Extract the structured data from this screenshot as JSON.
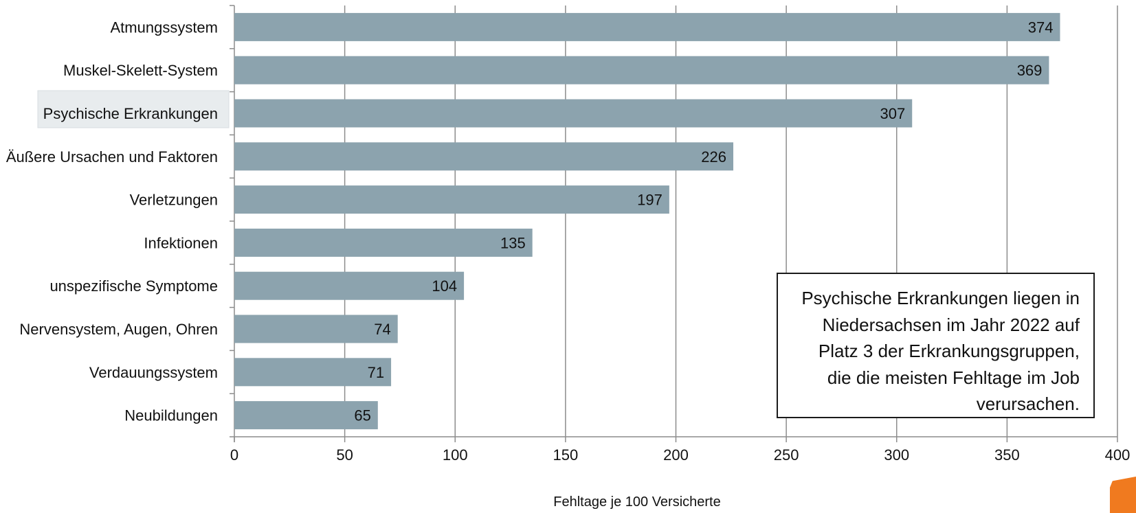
{
  "chart_data": {
    "type": "bar",
    "orientation": "horizontal",
    "categories": [
      "Atmungssystem",
      "Muskel-Skelett-System",
      "Psychische Erkrankungen",
      "Äußere Ursachen und Faktoren",
      "Verletzungen",
      "Infektionen",
      "unspezifische Symptome",
      "Nervensystem, Augen, Ohren",
      "Verdauungssystem",
      "Neubildungen"
    ],
    "values": [
      374,
      369,
      307,
      226,
      197,
      135,
      104,
      74,
      71,
      65
    ],
    "highlighted_category": "Psychische Erkrankungen",
    "xlabel": "Fehltage je 100 Versicherte",
    "xlim": [
      0,
      400
    ],
    "xticks": [
      0,
      50,
      100,
      150,
      200,
      250,
      300,
      350,
      400
    ],
    "grid": "vertical",
    "bar_color": "#8ca3ae",
    "annotation": "Psychische Erkrankungen liegen in Niedersachsen im Jahr 2022 auf Platz 3 der Erkrankungsgruppen, die die meisten Fehltage im Job verursachen."
  },
  "colors": {
    "bar": "#8ca3ae",
    "grid": "#8c8c8c",
    "highlight_bg": "#e8ecee",
    "logo": "#f07a1f"
  }
}
